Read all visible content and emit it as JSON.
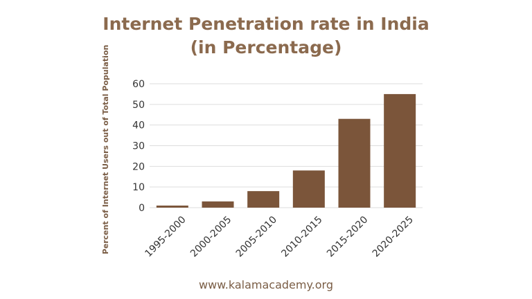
{
  "chart_data": {
    "type": "bar",
    "title_line1": "Internet Penetration rate in India",
    "title_line2": "(in Percentage)",
    "ylabel": "Percent of Internet Users out of Total Population",
    "xlabel": "",
    "categories": [
      "1995-2000",
      "2000-2005",
      "2005-2010",
      "2010-2015",
      "2015-2020",
      "2020-2025"
    ],
    "values": [
      1,
      3,
      8,
      18,
      43,
      55
    ],
    "ylim": [
      0,
      60
    ],
    "yticks": [
      0,
      10,
      20,
      30,
      40,
      50,
      60
    ],
    "grid": true,
    "bar_color": "#7b553a",
    "title_color": "#8b6a4e",
    "grid_color": "#dddddd"
  },
  "footer": "www.kalamacademy.org"
}
